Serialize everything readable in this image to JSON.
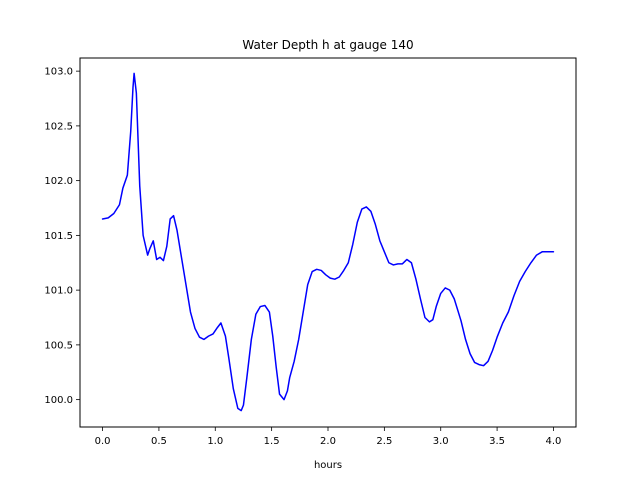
{
  "chart_data": {
    "type": "line",
    "title": "Water Depth h at gauge 140",
    "xlabel": "hours",
    "ylabel": "",
    "xlim": [
      -0.2,
      4.2
    ],
    "ylim": [
      99.75,
      103.12
    ],
    "xticks": [
      0.0,
      0.5,
      1.0,
      1.5,
      2.0,
      2.5,
      3.0,
      3.5,
      4.0
    ],
    "xtick_labels": [
      "0.0",
      "0.5",
      "1.0",
      "1.5",
      "2.0",
      "2.5",
      "3.0",
      "3.5",
      "4.0"
    ],
    "yticks": [
      100.0,
      100.5,
      101.0,
      101.5,
      102.0,
      102.5,
      103.0
    ],
    "ytick_labels": [
      "100.0",
      "100.5",
      "101.0",
      "101.5",
      "102.0",
      "102.5",
      "103.0"
    ],
    "grid": false,
    "series": [
      {
        "color": "#0000ff",
        "x": [
          0.0,
          0.05,
          0.1,
          0.15,
          0.18,
          0.22,
          0.25,
          0.27,
          0.28,
          0.3,
          0.33,
          0.36,
          0.4,
          0.42,
          0.45,
          0.48,
          0.51,
          0.54,
          0.57,
          0.6,
          0.63,
          0.66,
          0.7,
          0.74,
          0.78,
          0.82,
          0.86,
          0.9,
          0.94,
          0.98,
          1.02,
          1.05,
          1.09,
          1.12,
          1.16,
          1.2,
          1.23,
          1.25,
          1.28,
          1.32,
          1.36,
          1.4,
          1.44,
          1.48,
          1.51,
          1.54,
          1.57,
          1.61,
          1.64,
          1.66,
          1.7,
          1.74,
          1.78,
          1.82,
          1.86,
          1.9,
          1.94,
          1.98,
          2.02,
          2.06,
          2.1,
          2.14,
          2.18,
          2.22,
          2.26,
          2.3,
          2.34,
          2.38,
          2.42,
          2.46,
          2.5,
          2.54,
          2.58,
          2.62,
          2.66,
          2.7,
          2.74,
          2.78,
          2.82,
          2.86,
          2.9,
          2.93,
          2.96,
          3.0,
          3.04,
          3.08,
          3.12,
          3.15,
          3.18,
          3.22,
          3.26,
          3.3,
          3.34,
          3.38,
          3.42,
          3.46,
          3.5,
          3.55,
          3.6,
          3.65,
          3.7,
          3.75,
          3.8,
          3.85,
          3.9,
          3.95,
          4.0
        ],
        "y": [
          101.65,
          101.66,
          101.7,
          101.78,
          101.93,
          102.05,
          102.45,
          102.85,
          102.98,
          102.8,
          101.95,
          101.5,
          101.32,
          101.38,
          101.45,
          101.28,
          101.3,
          101.27,
          101.4,
          101.65,
          101.68,
          101.55,
          101.3,
          101.05,
          100.8,
          100.65,
          100.57,
          100.55,
          100.58,
          100.6,
          100.66,
          100.7,
          100.58,
          100.38,
          100.1,
          99.92,
          99.9,
          99.95,
          100.2,
          100.55,
          100.78,
          100.85,
          100.86,
          100.8,
          100.58,
          100.3,
          100.05,
          100.0,
          100.08,
          100.2,
          100.35,
          100.55,
          100.8,
          101.05,
          101.17,
          101.19,
          101.18,
          101.14,
          101.11,
          101.1,
          101.12,
          101.18,
          101.25,
          101.42,
          101.62,
          101.74,
          101.76,
          101.72,
          101.6,
          101.45,
          101.35,
          101.25,
          101.23,
          101.24,
          101.24,
          101.28,
          101.25,
          101.1,
          100.92,
          100.75,
          100.71,
          100.73,
          100.85,
          100.97,
          101.02,
          101.0,
          100.92,
          100.82,
          100.72,
          100.55,
          100.42,
          100.34,
          100.32,
          100.31,
          100.35,
          100.45,
          100.57,
          100.7,
          100.8,
          100.95,
          101.08,
          101.17,
          101.25,
          101.32,
          101.35,
          101.35,
          101.35
        ]
      }
    ]
  }
}
